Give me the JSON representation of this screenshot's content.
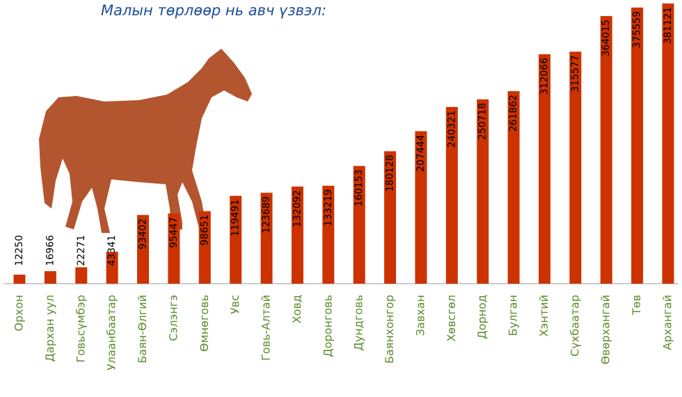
{
  "chart_data": {
    "type": "bar",
    "title": "Малын төрлөөр нь авч үзвэл:",
    "categories": [
      "Орхон",
      "Дархан уул",
      "Говьсүмбэр",
      "Улаанбаатар",
      "Баян-Өлгий",
      "Сэлэнгэ",
      "Өмнөговь",
      "Увс",
      "Говь-Алтай",
      "Ховд",
      "Доронговь",
      "Дундговь",
      "Баянхонгор",
      "Завхан",
      "Хөвсгөл",
      "Дорнод",
      "Булган",
      "Хэнтий",
      "Сүхбаатар",
      "Өвөрхангай",
      "Төв",
      "Архангай"
    ],
    "values": [
      12250,
      16966,
      22271,
      43341,
      93402,
      95447,
      98651,
      119491,
      123689,
      132092,
      133219,
      160153,
      180128,
      207444,
      240321,
      250718,
      261862,
      312066,
      315577,
      364015,
      375559,
      381121
    ],
    "color": "#cc3300"
  }
}
